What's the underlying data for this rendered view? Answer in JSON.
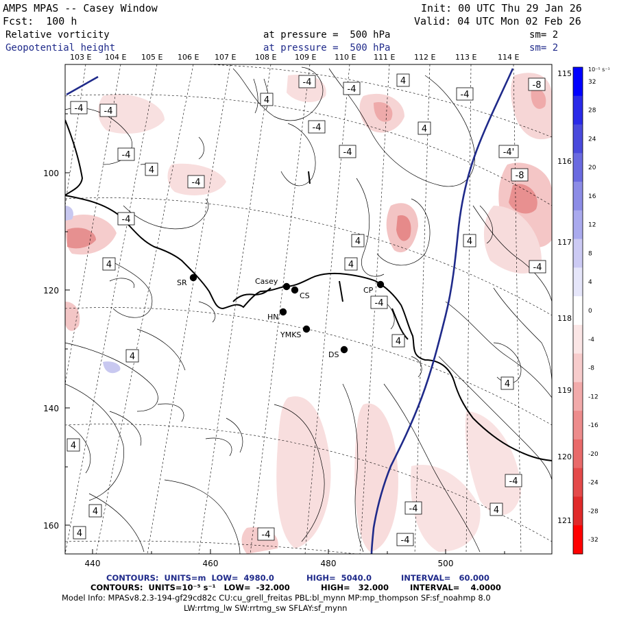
{
  "header": {
    "title": "AMPS MPAS -- Casey Window",
    "init": "Init: 00 UTC Thu 29 Jan 26",
    "forecast": "Fcst:  100 h",
    "valid": "Valid: 04 UTC Mon 02 Feb 26",
    "field1": "Relative vorticity",
    "field1_level": "at pressure =  500 hPa",
    "field1_sm": "sm= 2",
    "field2": "Geopotential height",
    "field2_level": "at pressure =  500 hPa",
    "field2_sm": "sm= 2"
  },
  "map": {
    "top_lon_labels": [
      "103 E",
      "104 E",
      "105 E",
      "106 E",
      "107 E",
      "108 E",
      "109 E",
      "110 E",
      "111 E",
      "112 E",
      "113 E",
      "114 E"
    ],
    "right_lon_labels": [
      "115 E",
      "116 E",
      "117 E",
      "118 E",
      "119 E",
      "120 E",
      "121 E"
    ],
    "y_axis_labels": [
      "100",
      "120",
      "140",
      "160"
    ],
    "x_axis_labels": [
      "440",
      "460",
      "480",
      "500"
    ],
    "stations": [
      {
        "name": "SR",
        "label": "SR"
      },
      {
        "name": "Casey",
        "label": "Casey"
      },
      {
        "name": "CS",
        "label": "CS"
      },
      {
        "name": "HN",
        "label": "HN"
      },
      {
        "name": "YMKS",
        "label": "YMKS"
      },
      {
        "name": "CP",
        "label": "CP"
      },
      {
        "name": "DS",
        "label": "DS"
      }
    ],
    "contour_labels": [
      "-4",
      "4",
      "-8",
      "-4'"
    ]
  },
  "colorbar": {
    "unit": "10⁻⁵ s⁻¹",
    "ticks": [
      "32",
      "28",
      "24",
      "20",
      "16",
      "12",
      "8",
      "4",
      "0",
      "-4",
      "-8",
      "-12",
      "-16",
      "-20",
      "-24",
      "-28",
      "-32"
    ],
    "colors": [
      "#0000ff",
      "#2a2ae8",
      "#4a4adc",
      "#6a6ae0",
      "#8c8ce6",
      "#aaaaee",
      "#cccaf4",
      "#e6e6fa",
      "#ffffff",
      "#fbe6e6",
      "#f7cccc",
      "#f2aaaa",
      "#ed8c8c",
      "#e96a6a",
      "#e44a4a",
      "#e02a2a",
      "#ff0000"
    ]
  },
  "footer": {
    "line1_label": "CONTOURS:  UNITS=m  LOW=  4980.0",
    "line1_high": "HIGH=  5040.0",
    "line1_interval": "INTERVAL=   60.000",
    "line2_label": "CONTOURS:  UNITS=10⁻⁵ s⁻¹   LOW=  -32.000",
    "line2_high": "HIGH=   32.000",
    "line2_interval": "INTERVAL=    4.0000",
    "model_info": "Model Info: MPASv8.2.3-194-gf29cd82c CU:cu_grell_freitas PBL:bl_mynn MP:mp_thompson SF:sf_noahmp 8.0",
    "model_info2": "LW:rrtmg_lw SW:rrtmg_sw SFLAY:sf_mynn"
  }
}
